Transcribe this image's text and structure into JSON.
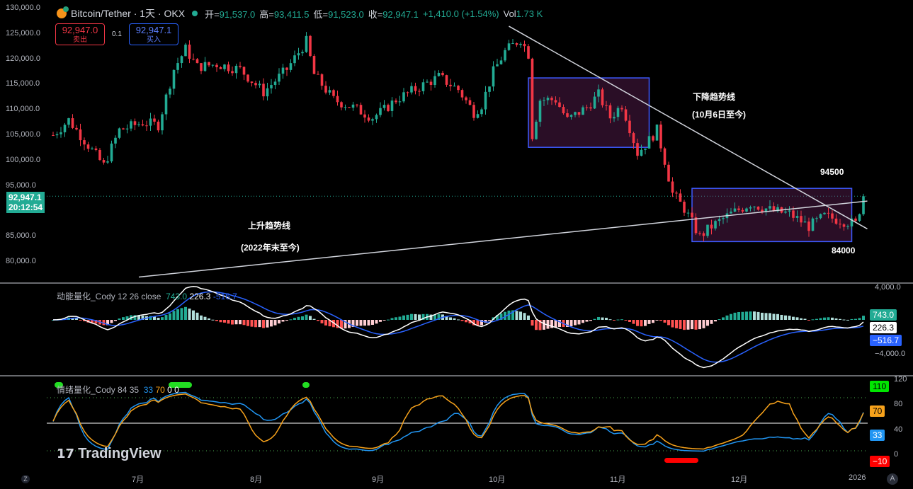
{
  "header": {
    "symbol": "Bitcoin/Tether · 1天 · OKX",
    "open_label": "开=",
    "open": "91,537.0",
    "high_label": "高=",
    "high": "93,411.5",
    "low_label": "低=",
    "low": "91,523.0",
    "close_label": "收=",
    "close": "92,947.1",
    "change": "+1,410.0 (+1.54%)",
    "vol_label": "Vol",
    "vol": "1.73 K"
  },
  "trade": {
    "sell_price": "92,947.0",
    "sell_label": "卖出",
    "spread": "0.1",
    "buy_price": "92,947.1",
    "buy_label": "买入"
  },
  "price_axis": [
    "130,000.0",
    "125,000.0",
    "120,000.0",
    "115,000.0",
    "110,000.0",
    "105,000.0",
    "100,000.0",
    "95,000.0",
    "85,000.0",
    "80,000.0"
  ],
  "current_price": {
    "price": "92,947.1",
    "countdown": "20:12:54"
  },
  "time_axis": [
    "7月",
    "8月",
    "9月",
    "10月",
    "11月",
    "12月",
    "2026"
  ],
  "annotations": {
    "down_title": "下降趋势线",
    "down_sub": "(10月6日至今)",
    "up_title": "上升趋势线",
    "up_sub": "(2022年末至今)",
    "upper": "94500",
    "lower": "84000"
  },
  "macd": {
    "title": "动能量化_Cody 12 26 close",
    "hist": "743.0",
    "macd": "226.3",
    "signal": "-516.7",
    "axis_top": "4,000.0",
    "axis_bottom": "−4,000.0",
    "tag_hist": "743.0",
    "tag_macd": "226.3",
    "tag_signal": "−516.7"
  },
  "sentiment": {
    "title": "情绪量化_Cody 84 35",
    "v1": "33",
    "v2": "70",
    "v3": "0",
    "v4": "0",
    "axis": [
      "120",
      "80",
      "40",
      "0"
    ],
    "tag_110": "110",
    "tag_70": "70",
    "tag_33": "33",
    "tag_m10": "−10"
  },
  "logo": "TradingView",
  "corner": {
    "left": "Z",
    "right": "A"
  },
  "colors": {
    "up": "#22ab94",
    "down": "#f23645",
    "macd": "#ffffff",
    "signal": "#2962ff",
    "orange": "#f7a21b",
    "blue": "#2196f3"
  },
  "chart_data": {
    "type": "candlestick",
    "x_unit": "days since 2025-07-01",
    "close_keypoints": [
      [
        -22,
        105000
      ],
      [
        -18,
        108000
      ],
      [
        -14,
        104000
      ],
      [
        -9,
        99000
      ],
      [
        -5,
        106000
      ],
      [
        1,
        107500
      ],
      [
        5,
        107000
      ],
      [
        9,
        118000
      ],
      [
        12,
        122000
      ],
      [
        15,
        118500
      ],
      [
        20,
        119000
      ],
      [
        26,
        118000
      ],
      [
        32,
        113500
      ],
      [
        38,
        118000
      ],
      [
        43,
        123500
      ],
      [
        45,
        117000
      ],
      [
        50,
        112000
      ],
      [
        55,
        110500
      ],
      [
        60,
        108500
      ],
      [
        63,
        110000
      ],
      [
        66,
        112000
      ],
      [
        72,
        114500
      ],
      [
        77,
        116500
      ],
      [
        82,
        114000
      ],
      [
        86,
        109500
      ],
      [
        88,
        111000
      ],
      [
        91,
        117500
      ],
      [
        94,
        121500
      ],
      [
        98,
        124000
      ],
      [
        100,
        121000
      ],
      [
        101,
        105000
      ],
      [
        103,
        112000
      ],
      [
        107,
        112000
      ],
      [
        110,
        108000
      ],
      [
        115,
        110500
      ],
      [
        118,
        113000
      ],
      [
        121,
        108500
      ],
      [
        124,
        111000
      ],
      [
        126,
        106500
      ],
      [
        128,
        101500
      ],
      [
        131,
        104000
      ],
      [
        133,
        106000
      ],
      [
        135,
        100000
      ],
      [
        137,
        93500
      ],
      [
        140,
        90500
      ],
      [
        144,
        85000
      ],
      [
        147,
        87000
      ],
      [
        152,
        89500
      ],
      [
        157,
        91500
      ],
      [
        163,
        90000
      ],
      [
        167,
        89500
      ],
      [
        172,
        87000
      ],
      [
        176,
        89000
      ],
      [
        181,
        88000
      ],
      [
        184,
        87500
      ],
      [
        186,
        92947
      ]
    ],
    "ylim": [
      80000,
      130000
    ],
    "down_trendline": [
      [
        95,
        126500
      ],
      [
        187,
        86500
      ]
    ],
    "up_trendline": [
      [
        0,
        77000
      ],
      [
        187,
        92000
      ]
    ],
    "box1": {
      "days": [
        100,
        131
      ],
      "prices": [
        102600,
        116300
      ]
    },
    "box2": {
      "days": [
        142,
        183
      ],
      "prices": [
        84000,
        94500
      ]
    },
    "macd_ylim": [
      -4000,
      4000
    ],
    "sentiment_ylim": [
      -10,
      120
    ]
  }
}
